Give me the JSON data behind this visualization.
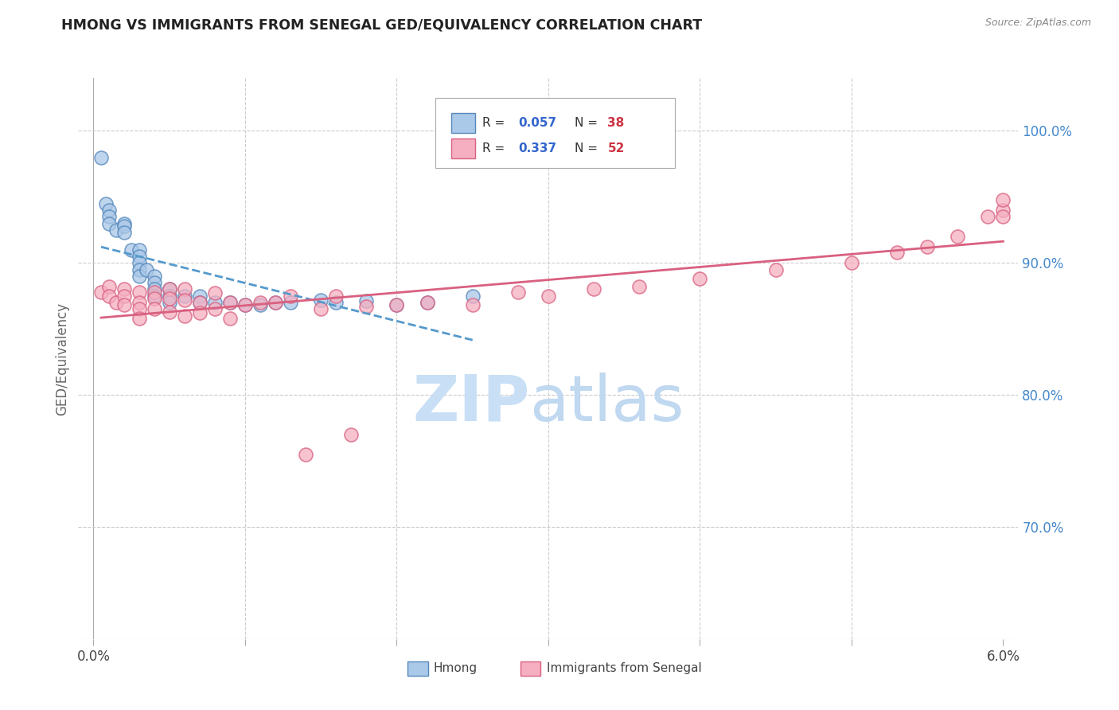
{
  "title": "HMONG VS IMMIGRANTS FROM SENEGAL GED/EQUIVALENCY CORRELATION CHART",
  "source": "Source: ZipAtlas.com",
  "ylabel": "GED/Equivalency",
  "y_ticks": [
    0.7,
    0.8,
    0.9,
    1.0
  ],
  "y_tick_labels": [
    "70.0%",
    "80.0%",
    "90.0%",
    "100.0%"
  ],
  "xlim": [
    -0.001,
    0.061
  ],
  "ylim": [
    0.615,
    1.04
  ],
  "hmong_color": "#aac8e8",
  "senegal_color": "#f5afc0",
  "hmong_edge": "#5588bb",
  "senegal_edge": "#d96080",
  "trendline_hmong": "#5599cc",
  "trendline_senegal": "#d96080",
  "watermark_zip_color": "#c8dff5",
  "watermark_atlas_color": "#c0d8f0",
  "hmong_x": [
    0.0005,
    0.0008,
    0.001,
    0.001,
    0.001,
    0.0015,
    0.002,
    0.002,
    0.002,
    0.0025,
    0.003,
    0.003,
    0.003,
    0.003,
    0.003,
    0.0035,
    0.004,
    0.004,
    0.004,
    0.004,
    0.005,
    0.005,
    0.005,
    0.006,
    0.007,
    0.007,
    0.008,
    0.009,
    0.01,
    0.011,
    0.012,
    0.013,
    0.015,
    0.016,
    0.018,
    0.02,
    0.022,
    0.025
  ],
  "hmong_y": [
    0.98,
    0.945,
    0.94,
    0.935,
    0.93,
    0.925,
    0.93,
    0.928,
    0.923,
    0.91,
    0.91,
    0.905,
    0.9,
    0.895,
    0.89,
    0.895,
    0.89,
    0.885,
    0.88,
    0.875,
    0.88,
    0.875,
    0.87,
    0.875,
    0.875,
    0.87,
    0.87,
    0.87,
    0.868,
    0.868,
    0.87,
    0.87,
    0.872,
    0.87,
    0.871,
    0.868,
    0.87,
    0.875
  ],
  "senegal_x": [
    0.0005,
    0.001,
    0.001,
    0.0015,
    0.002,
    0.002,
    0.002,
    0.003,
    0.003,
    0.003,
    0.003,
    0.004,
    0.004,
    0.004,
    0.005,
    0.005,
    0.005,
    0.006,
    0.006,
    0.006,
    0.007,
    0.007,
    0.008,
    0.008,
    0.009,
    0.009,
    0.01,
    0.011,
    0.012,
    0.013,
    0.014,
    0.015,
    0.016,
    0.017,
    0.018,
    0.02,
    0.022,
    0.025,
    0.028,
    0.03,
    0.033,
    0.036,
    0.04,
    0.045,
    0.05,
    0.053,
    0.055,
    0.057,
    0.059,
    0.06,
    0.06,
    0.06
  ],
  "senegal_y": [
    0.878,
    0.882,
    0.875,
    0.87,
    0.88,
    0.875,
    0.868,
    0.878,
    0.87,
    0.865,
    0.858,
    0.878,
    0.873,
    0.865,
    0.88,
    0.873,
    0.863,
    0.88,
    0.872,
    0.86,
    0.87,
    0.862,
    0.877,
    0.865,
    0.87,
    0.858,
    0.868,
    0.87,
    0.87,
    0.875,
    0.755,
    0.865,
    0.875,
    0.77,
    0.867,
    0.868,
    0.87,
    0.868,
    0.878,
    0.875,
    0.88,
    0.882,
    0.888,
    0.895,
    0.9,
    0.908,
    0.912,
    0.92,
    0.935,
    0.94,
    0.935,
    0.948
  ]
}
